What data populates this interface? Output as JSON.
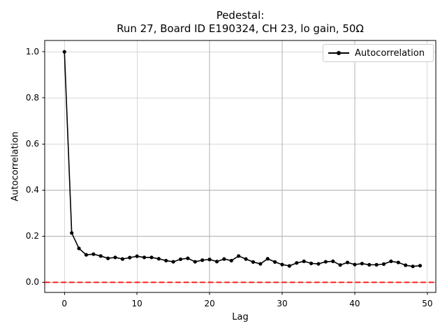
{
  "title": {
    "line1": "Pedestal:",
    "line2": "Run 27, Board ID E190324, CH 23, lo gain, 50Ω"
  },
  "axes": {
    "xlabel": "Lag",
    "ylabel": "Autocorrelation",
    "x_ticks": [
      0,
      10,
      20,
      30,
      40,
      50
    ],
    "y_ticks": [
      "0.0",
      "0.2",
      "0.4",
      "0.6",
      "0.8",
      "1.0"
    ]
  },
  "legend": {
    "label": "Autocorrelation"
  },
  "colors": {
    "line": "#000000",
    "zero_line": "#ff0000",
    "grid": "#b0b0b0",
    "spine": "#000000",
    "legend_border": "#cccccc",
    "background": "#ffffff"
  },
  "chart_data": {
    "type": "line",
    "title": "Pedestal:\nRun 27, Board ID E190324, CH 23, lo gain, 50Ω",
    "xlabel": "Lag",
    "ylabel": "Autocorrelation",
    "grid": true,
    "legend_position": "upper right",
    "xlim": [
      -2.72,
      51.17
    ],
    "ylim": [
      -0.044,
      1.049
    ],
    "marker": "dot",
    "x": [
      0,
      1,
      2,
      3,
      4,
      5,
      6,
      7,
      8,
      9,
      10,
      11,
      12,
      13,
      14,
      15,
      16,
      17,
      18,
      19,
      20,
      21,
      22,
      23,
      24,
      25,
      26,
      27,
      28,
      29,
      30,
      31,
      32,
      33,
      34,
      35,
      36,
      37,
      38,
      39,
      40,
      41,
      42,
      43,
      44,
      45,
      46,
      47,
      48,
      49
    ],
    "series": [
      {
        "name": "Autocorrelation",
        "color": "#000000",
        "values": [
          1.0,
          0.214,
          0.147,
          0.119,
          0.122,
          0.114,
          0.104,
          0.108,
          0.101,
          0.107,
          0.113,
          0.108,
          0.108,
          0.102,
          0.094,
          0.089,
          0.1,
          0.104,
          0.089,
          0.096,
          0.099,
          0.09,
          0.101,
          0.094,
          0.114,
          0.101,
          0.088,
          0.08,
          0.102,
          0.088,
          0.077,
          0.071,
          0.084,
          0.091,
          0.082,
          0.08,
          0.089,
          0.091,
          0.075,
          0.086,
          0.077,
          0.081,
          0.076,
          0.076,
          0.079,
          0.091,
          0.086,
          0.074,
          0.069,
          0.072
        ]
      }
    ],
    "reference_lines": [
      {
        "y": 0.0,
        "color": "#ff0000",
        "style": "dashed"
      }
    ]
  }
}
